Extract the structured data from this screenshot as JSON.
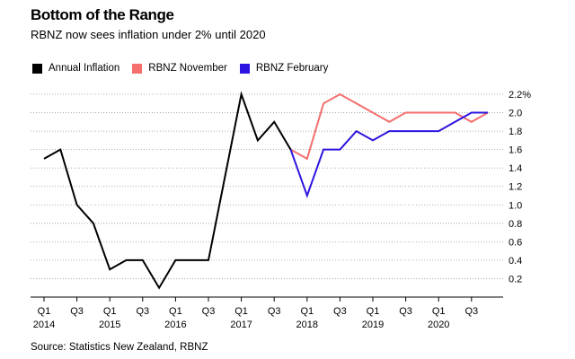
{
  "header": {
    "title": "Bottom of the Range",
    "subtitle": "RBNZ now sees inflation under 2% until 2020"
  },
  "footer": {
    "source": "Source: Statistics New Zealand, RBNZ"
  },
  "legend": [
    {
      "label": "Annual Inflation",
      "color": "#000000"
    },
    {
      "label": "RBNZ November",
      "color": "#f46e6e"
    },
    {
      "label": "RBNZ February",
      "color": "#2d14e0"
    }
  ],
  "chart_data": {
    "type": "line",
    "title": "Bottom of the Range",
    "subtitle": "RBNZ now sees inflation under 2% until 2020",
    "xlabel": "",
    "ylabel": "",
    "x": [
      "2014 Q1",
      "2014 Q2",
      "2014 Q3",
      "2014 Q4",
      "2015 Q1",
      "2015 Q2",
      "2015 Q3",
      "2015 Q4",
      "2016 Q1",
      "2016 Q2",
      "2016 Q3",
      "2016 Q4",
      "2017 Q1",
      "2017 Q2",
      "2017 Q3",
      "2017 Q4",
      "2018 Q1",
      "2018 Q2",
      "2018 Q3",
      "2018 Q4",
      "2019 Q1",
      "2019 Q2",
      "2019 Q3",
      "2019 Q4",
      "2020 Q1",
      "2020 Q2",
      "2020 Q3",
      "2020 Q4"
    ],
    "series": [
      {
        "name": "Annual Inflation",
        "color": "#000000",
        "x": [
          "2014 Q1",
          "2014 Q2",
          "2014 Q3",
          "2014 Q4",
          "2015 Q1",
          "2015 Q2",
          "2015 Q3",
          "2015 Q4",
          "2016 Q1",
          "2016 Q2",
          "2016 Q3",
          "2016 Q4",
          "2017 Q1",
          "2017 Q2",
          "2017 Q3",
          "2017 Q4"
        ],
        "values": [
          1.5,
          1.6,
          1.0,
          0.8,
          0.3,
          0.4,
          0.4,
          0.1,
          0.4,
          0.4,
          0.4,
          1.3,
          2.2,
          1.7,
          1.9,
          1.6
        ]
      },
      {
        "name": "RBNZ November",
        "color": "#f46e6e",
        "x": [
          "2017 Q4",
          "2018 Q1",
          "2018 Q2",
          "2018 Q3",
          "2018 Q4",
          "2019 Q1",
          "2019 Q2",
          "2019 Q3",
          "2019 Q4",
          "2020 Q1",
          "2020 Q2",
          "2020 Q3",
          "2020 Q4"
        ],
        "values": [
          1.6,
          1.5,
          2.1,
          2.2,
          2.1,
          2.0,
          1.9,
          2.0,
          2.0,
          2.0,
          2.0,
          1.9,
          2.0
        ]
      },
      {
        "name": "RBNZ February",
        "color": "#2d14e0",
        "x": [
          "2017 Q4",
          "2018 Q1",
          "2018 Q2",
          "2018 Q3",
          "2018 Q4",
          "2019 Q1",
          "2019 Q2",
          "2019 Q3",
          "2019 Q4",
          "2020 Q1",
          "2020 Q2",
          "2020 Q3",
          "2020 Q4"
        ],
        "values": [
          1.6,
          1.1,
          1.6,
          1.6,
          1.8,
          1.7,
          1.8,
          1.8,
          1.8,
          1.8,
          1.9,
          2.0,
          2.0
        ]
      }
    ],
    "ylim": [
      0,
      2.2
    ],
    "y_ticks": [
      {
        "value": 0.2,
        "label": "0.2"
      },
      {
        "value": 0.4,
        "label": "0.4"
      },
      {
        "value": 0.6,
        "label": "0.6"
      },
      {
        "value": 0.8,
        "label": "0.8"
      },
      {
        "value": 1.0,
        "label": "1.0"
      },
      {
        "value": 1.2,
        "label": "1.2"
      },
      {
        "value": 1.4,
        "label": "1.4"
      },
      {
        "value": 1.6,
        "label": "1.6"
      },
      {
        "value": 1.8,
        "label": "1.8"
      },
      {
        "value": 2.0,
        "label": "2.0"
      },
      {
        "value": 2.2,
        "label": "2.2%"
      }
    ],
    "x_ticks": [
      {
        "x": "2014 Q1",
        "quarter": "Q1",
        "year": "2014"
      },
      {
        "x": "2014 Q3",
        "quarter": "Q3",
        "year": ""
      },
      {
        "x": "2015 Q1",
        "quarter": "Q1",
        "year": "2015"
      },
      {
        "x": "2015 Q3",
        "quarter": "Q3",
        "year": ""
      },
      {
        "x": "2016 Q1",
        "quarter": "Q1",
        "year": "2016"
      },
      {
        "x": "2016 Q3",
        "quarter": "Q3",
        "year": ""
      },
      {
        "x": "2017 Q1",
        "quarter": "Q1",
        "year": "2017"
      },
      {
        "x": "2017 Q3",
        "quarter": "Q3",
        "year": ""
      },
      {
        "x": "2018 Q1",
        "quarter": "Q1",
        "year": "2018"
      },
      {
        "x": "2018 Q3",
        "quarter": "Q3",
        "year": ""
      },
      {
        "x": "2019 Q1",
        "quarter": "Q1",
        "year": "2019"
      },
      {
        "x": "2019 Q3",
        "quarter": "Q3",
        "year": ""
      },
      {
        "x": "2020 Q1",
        "quarter": "Q1",
        "year": "2020"
      },
      {
        "x": "2020 Q3",
        "quarter": "Q3",
        "year": ""
      }
    ],
    "grid": "horizontal dotted",
    "y_axis_position": "right",
    "legend_position": "top-left"
  }
}
